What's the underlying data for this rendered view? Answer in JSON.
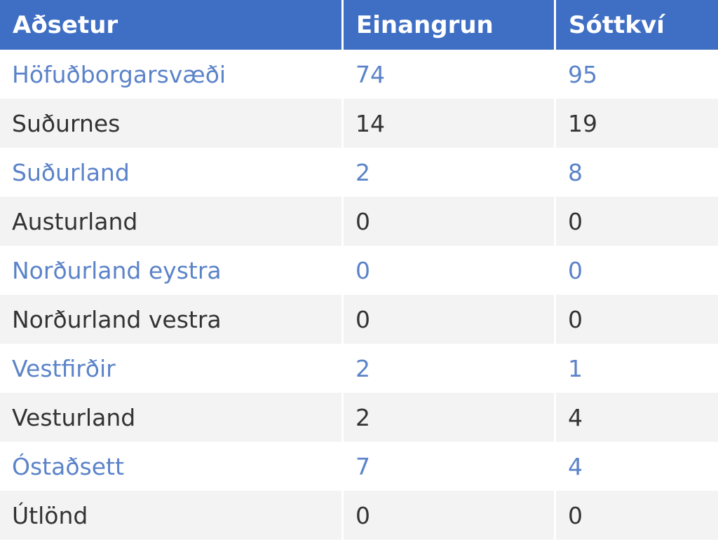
{
  "table": {
    "headers": [
      "Aðsetur",
      "Einangrun",
      "Sóttkví"
    ],
    "rows": [
      [
        "Höfuðborgarsvæði",
        "74",
        "95"
      ],
      [
        "Suðurnes",
        "14",
        "19"
      ],
      [
        "Suðurland",
        "2",
        "8"
      ],
      [
        "Austurland",
        "0",
        "0"
      ],
      [
        "Norðurland eystra",
        "0",
        "0"
      ],
      [
        "Norðurland vestra",
        "0",
        "0"
      ],
      [
        "Vestfirðir",
        "2",
        "1"
      ],
      [
        "Vesturland",
        "2",
        "4"
      ],
      [
        "Óstaðsett",
        "7",
        "4"
      ],
      [
        "Útlönd",
        "0",
        "0"
      ]
    ]
  },
  "colors": {
    "header_bg": "#3f6fc4",
    "header_text": "#ffffff",
    "row_odd_text": "#5b83c9",
    "row_even_text": "#333333",
    "row_even_bg": "#f3f3f3"
  }
}
